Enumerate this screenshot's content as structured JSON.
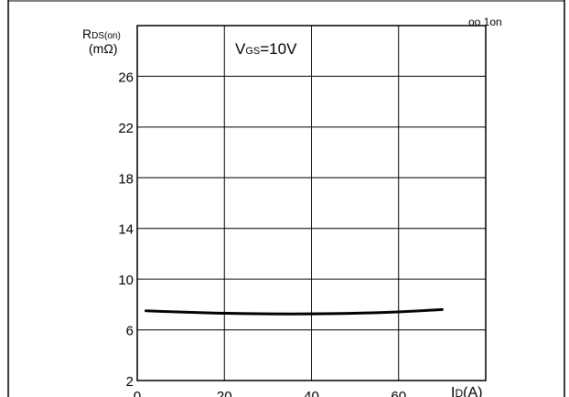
{
  "chart_data": {
    "type": "line",
    "title": "",
    "top_right_fragment": "oo 1on",
    "annotation": {
      "main": "V",
      "sub": "GS",
      "rest": "=10V"
    },
    "ylabel": {
      "main": "R",
      "sub": "DS(on)",
      "unit": "(mΩ)"
    },
    "xlabel": {
      "main": "I",
      "sub": "D",
      "unit": "(A)"
    },
    "xlim": [
      0,
      80
    ],
    "ylim": [
      2,
      30
    ],
    "x_ticks": [
      "0",
      "20",
      "40",
      "60"
    ],
    "y_ticks": [
      "2",
      "6",
      "10",
      "14",
      "18",
      "22",
      "26"
    ],
    "grid": true,
    "series": [
      {
        "x": [
          2,
          10,
          20,
          30,
          40,
          50,
          60,
          70
        ],
        "y": [
          7.5,
          7.4,
          7.3,
          7.25,
          7.25,
          7.3,
          7.4,
          7.6
        ]
      }
    ]
  }
}
